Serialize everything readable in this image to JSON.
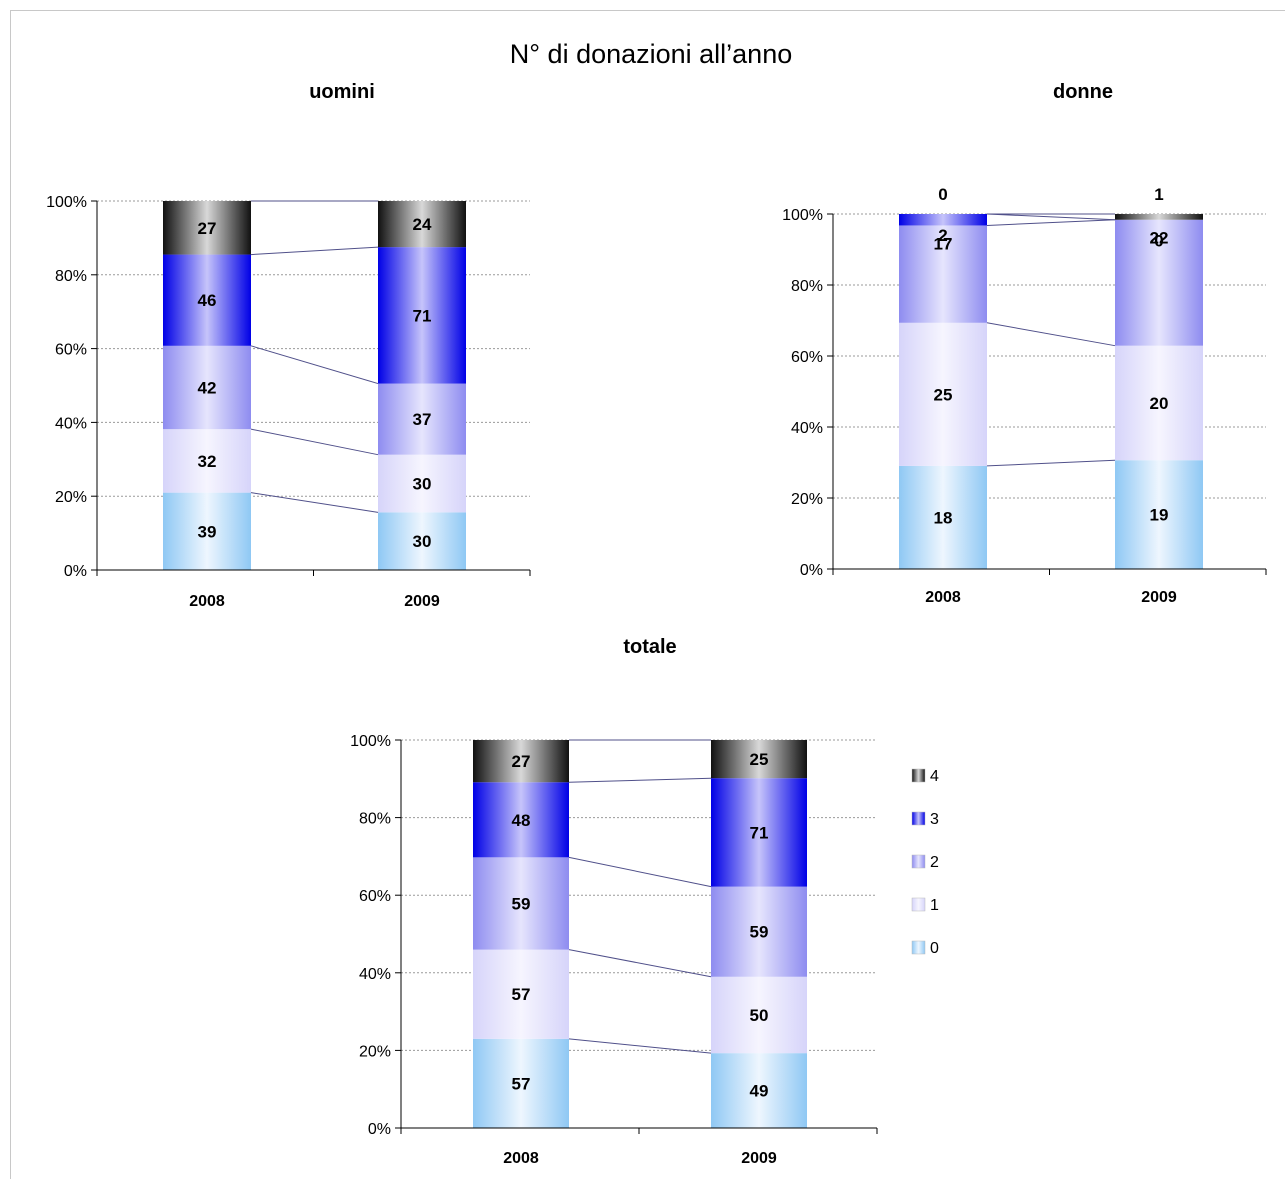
{
  "title": "N° di donazioni all’anno",
  "colors": {
    "0": [
      "#8fc8f4",
      "#eef6fe"
    ],
    "1": [
      "#d6d4fa",
      "#f6f5fe"
    ],
    "2": [
      "#8e8cf0",
      "#e6e5fd"
    ],
    "3": [
      "#0000e6",
      "#c6c4fa"
    ],
    "4": [
      "#111111",
      "#d8d8d8"
    ]
  },
  "legend": [
    {
      "key": "4",
      "label": "4"
    },
    {
      "key": "3",
      "label": "3"
    },
    {
      "key": "2",
      "label": "2"
    },
    {
      "key": "1",
      "label": "1"
    },
    {
      "key": "0",
      "label": "0"
    }
  ],
  "chart_data": [
    {
      "id": "uomini",
      "type": "bar",
      "stacked": "percent",
      "title": "uomini",
      "categories": [
        "2008",
        "2009"
      ],
      "yticks": [
        "0%",
        "20%",
        "40%",
        "60%",
        "80%",
        "100%"
      ],
      "ylim": [
        0,
        100
      ],
      "series": [
        {
          "name": "0",
          "values": [
            39,
            30
          ]
        },
        {
          "name": "1",
          "values": [
            32,
            30
          ]
        },
        {
          "name": "2",
          "values": [
            42,
            37
          ]
        },
        {
          "name": "3",
          "values": [
            46,
            71
          ]
        },
        {
          "name": "4",
          "values": [
            27,
            24
          ]
        }
      ]
    },
    {
      "id": "donne",
      "type": "bar",
      "stacked": "percent",
      "title": "donne",
      "categories": [
        "2008",
        "2009"
      ],
      "yticks": [
        "0%",
        "20%",
        "40%",
        "60%",
        "80%",
        "100%"
      ],
      "ylim": [
        0,
        100
      ],
      "series": [
        {
          "name": "0",
          "values": [
            18,
            19
          ]
        },
        {
          "name": "1",
          "values": [
            25,
            20
          ]
        },
        {
          "name": "2",
          "values": [
            17,
            22
          ]
        },
        {
          "name": "3",
          "values": [
            2,
            0
          ]
        },
        {
          "name": "4",
          "values": [
            0,
            1
          ]
        }
      ]
    },
    {
      "id": "totale",
      "type": "bar",
      "stacked": "percent",
      "title": "totale",
      "categories": [
        "2008",
        "2009"
      ],
      "yticks": [
        "0%",
        "20%",
        "40%",
        "60%",
        "80%",
        "100%"
      ],
      "ylim": [
        0,
        100
      ],
      "legend": "right",
      "series": [
        {
          "name": "0",
          "values": [
            57,
            49
          ]
        },
        {
          "name": "1",
          "values": [
            57,
            50
          ]
        },
        {
          "name": "2",
          "values": [
            59,
            59
          ]
        },
        {
          "name": "3",
          "values": [
            48,
            71
          ]
        },
        {
          "name": "4",
          "values": [
            27,
            25
          ]
        }
      ]
    }
  ]
}
